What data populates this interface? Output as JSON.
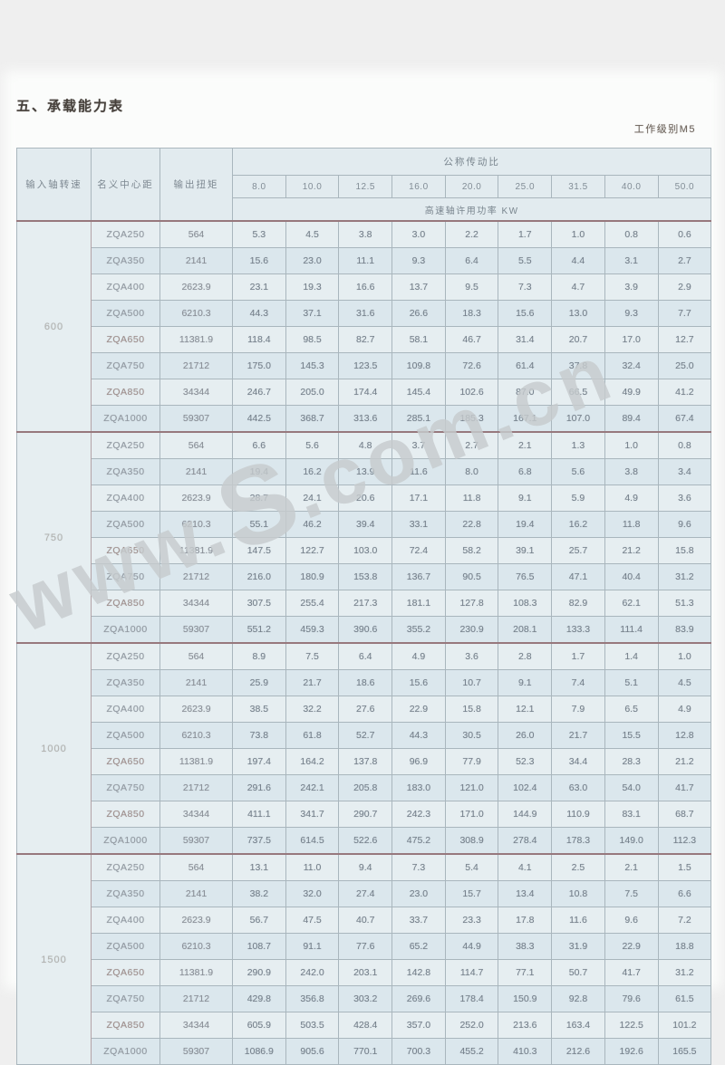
{
  "page": {
    "title": "五、承载能力表",
    "work_level": "工作级别M5"
  },
  "table": {
    "headers": {
      "speed": "输入轴转速",
      "center_distance": "名义中心距",
      "torque": "输出扭矩",
      "ratio_group": "公称传动比",
      "power_label": "高速轴许用功率 KW"
    },
    "ratios": [
      "8.0",
      "10.0",
      "12.5",
      "16.0",
      "20.0",
      "25.0",
      "31.5",
      "40.0",
      "50.0"
    ],
    "blocks": [
      {
        "speed": "600",
        "rows": [
          {
            "model": "ZQA250",
            "torque": "564",
            "values": [
              "5.3",
              "4.5",
              "3.8",
              "3.0",
              "2.2",
              "1.7",
              "1.0",
              "0.8",
              "0.6"
            ]
          },
          {
            "model": "ZQA350",
            "torque": "2141",
            "values": [
              "15.6",
              "23.0",
              "11.1",
              "9.3",
              "6.4",
              "5.5",
              "4.4",
              "3.1",
              "2.7"
            ]
          },
          {
            "model": "ZQA400",
            "torque": "2623.9",
            "values": [
              "23.1",
              "19.3",
              "16.6",
              "13.7",
              "9.5",
              "7.3",
              "4.7",
              "3.9",
              "2.9"
            ]
          },
          {
            "model": "ZQA500",
            "torque": "6210.3",
            "values": [
              "44.3",
              "37.1",
              "31.6",
              "26.6",
              "18.3",
              "15.6",
              "13.0",
              "9.3",
              "7.7"
            ]
          },
          {
            "model": "ZQA650",
            "torque": "11381.9",
            "values": [
              "118.4",
              "98.5",
              "82.7",
              "58.1",
              "46.7",
              "31.4",
              "20.7",
              "17.0",
              "12.7"
            ]
          },
          {
            "model": "ZQA750",
            "torque": "21712",
            "values": [
              "175.0",
              "145.3",
              "123.5",
              "109.8",
              "72.6",
              "61.4",
              "37.8",
              "32.4",
              "25.0"
            ]
          },
          {
            "model": "ZQA850",
            "torque": "34344",
            "values": [
              "246.7",
              "205.0",
              "174.4",
              "145.4",
              "102.6",
              "87.0",
              "66.5",
              "49.9",
              "41.2"
            ]
          },
          {
            "model": "ZQA1000",
            "torque": "59307",
            "values": [
              "442.5",
              "368.7",
              "313.6",
              "285.1",
              "185.3",
              "167.1",
              "107.0",
              "89.4",
              "67.4"
            ]
          }
        ]
      },
      {
        "speed": "750",
        "rows": [
          {
            "model": "ZQA250",
            "torque": "564",
            "values": [
              "6.6",
              "5.6",
              "4.8",
              "3.7",
              "2.7",
              "2.1",
              "1.3",
              "1.0",
              "0.8"
            ]
          },
          {
            "model": "ZQA350",
            "torque": "2141",
            "values": [
              "19.4",
              "16.2",
              "13.9",
              "11.6",
              "8.0",
              "6.8",
              "5.6",
              "3.8",
              "3.4"
            ]
          },
          {
            "model": "ZQA400",
            "torque": "2623.9",
            "values": [
              "28.7",
              "24.1",
              "20.6",
              "17.1",
              "11.8",
              "9.1",
              "5.9",
              "4.9",
              "3.6"
            ]
          },
          {
            "model": "ZQA500",
            "torque": "6210.3",
            "values": [
              "55.1",
              "46.2",
              "39.4",
              "33.1",
              "22.8",
              "19.4",
              "16.2",
              "11.8",
              "9.6"
            ]
          },
          {
            "model": "ZQA650",
            "torque": "11381.9",
            "values": [
              "147.5",
              "122.7",
              "103.0",
              "72.4",
              "58.2",
              "39.1",
              "25.7",
              "21.2",
              "15.8"
            ]
          },
          {
            "model": "ZQA750",
            "torque": "21712",
            "values": [
              "216.0",
              "180.9",
              "153.8",
              "136.7",
              "90.5",
              "76.5",
              "47.1",
              "40.4",
              "31.2"
            ]
          },
          {
            "model": "ZQA850",
            "torque": "34344",
            "values": [
              "307.5",
              "255.4",
              "217.3",
              "181.1",
              "127.8",
              "108.3",
              "82.9",
              "62.1",
              "51.3"
            ]
          },
          {
            "model": "ZQA1000",
            "torque": "59307",
            "values": [
              "551.2",
              "459.3",
              "390.6",
              "355.2",
              "230.9",
              "208.1",
              "133.3",
              "111.4",
              "83.9"
            ]
          }
        ]
      },
      {
        "speed": "1000",
        "rows": [
          {
            "model": "ZQA250",
            "torque": "564",
            "values": [
              "8.9",
              "7.5",
              "6.4",
              "4.9",
              "3.6",
              "2.8",
              "1.7",
              "1.4",
              "1.0"
            ]
          },
          {
            "model": "ZQA350",
            "torque": "2141",
            "values": [
              "25.9",
              "21.7",
              "18.6",
              "15.6",
              "10.7",
              "9.1",
              "7.4",
              "5.1",
              "4.5"
            ]
          },
          {
            "model": "ZQA400",
            "torque": "2623.9",
            "values": [
              "38.5",
              "32.2",
              "27.6",
              "22.9",
              "15.8",
              "12.1",
              "7.9",
              "6.5",
              "4.9"
            ]
          },
          {
            "model": "ZQA500",
            "torque": "6210.3",
            "values": [
              "73.8",
              "61.8",
              "52.7",
              "44.3",
              "30.5",
              "26.0",
              "21.7",
              "15.5",
              "12.8"
            ]
          },
          {
            "model": "ZQA650",
            "torque": "11381.9",
            "values": [
              "197.4",
              "164.2",
              "137.8",
              "96.9",
              "77.9",
              "52.3",
              "34.4",
              "28.3",
              "21.2"
            ]
          },
          {
            "model": "ZQA750",
            "torque": "21712",
            "values": [
              "291.6",
              "242.1",
              "205.8",
              "183.0",
              "121.0",
              "102.4",
              "63.0",
              "54.0",
              "41.7"
            ]
          },
          {
            "model": "ZQA850",
            "torque": "34344",
            "values": [
              "411.1",
              "341.7",
              "290.7",
              "242.3",
              "171.0",
              "144.9",
              "110.9",
              "83.1",
              "68.7"
            ]
          },
          {
            "model": "ZQA1000",
            "torque": "59307",
            "values": [
              "737.5",
              "614.5",
              "522.6",
              "475.2",
              "308.9",
              "278.4",
              "178.3",
              "149.0",
              "112.3"
            ]
          }
        ]
      },
      {
        "speed": "1500",
        "rows": [
          {
            "model": "ZQA250",
            "torque": "564",
            "values": [
              "13.1",
              "11.0",
              "9.4",
              "7.3",
              "5.4",
              "4.1",
              "2.5",
              "2.1",
              "1.5"
            ]
          },
          {
            "model": "ZQA350",
            "torque": "2141",
            "values": [
              "38.2",
              "32.0",
              "27.4",
              "23.0",
              "15.7",
              "13.4",
              "10.8",
              "7.5",
              "6.6"
            ]
          },
          {
            "model": "ZQA400",
            "torque": "2623.9",
            "values": [
              "56.7",
              "47.5",
              "40.7",
              "33.7",
              "23.3",
              "17.8",
              "11.6",
              "9.6",
              "7.2"
            ]
          },
          {
            "model": "ZQA500",
            "torque": "6210.3",
            "values": [
              "108.7",
              "91.1",
              "77.6",
              "65.2",
              "44.9",
              "38.3",
              "31.9",
              "22.9",
              "18.8"
            ]
          },
          {
            "model": "ZQA650",
            "torque": "11381.9",
            "values": [
              "290.9",
              "242.0",
              "203.1",
              "142.8",
              "114.7",
              "77.1",
              "50.7",
              "41.7",
              "31.2"
            ]
          },
          {
            "model": "ZQA750",
            "torque": "21712",
            "values": [
              "429.8",
              "356.8",
              "303.2",
              "269.6",
              "178.4",
              "150.9",
              "92.8",
              "79.6",
              "61.5"
            ]
          },
          {
            "model": "ZQA850",
            "torque": "34344",
            "values": [
              "605.9",
              "503.5",
              "428.4",
              "357.0",
              "252.0",
              "213.6",
              "163.4",
              "122.5",
              "101.2"
            ]
          },
          {
            "model": "ZQA1000",
            "torque": "59307",
            "values": [
              "1086.9",
              "905.6",
              "770.1",
              "700.3",
              "455.2",
              "410.3",
              "212.6",
              "192.6",
              "165.5"
            ]
          }
        ]
      }
    ]
  },
  "watermark": {
    "prefix": "www.",
    "mid": "S",
    "suffix": ".com.cn"
  }
}
